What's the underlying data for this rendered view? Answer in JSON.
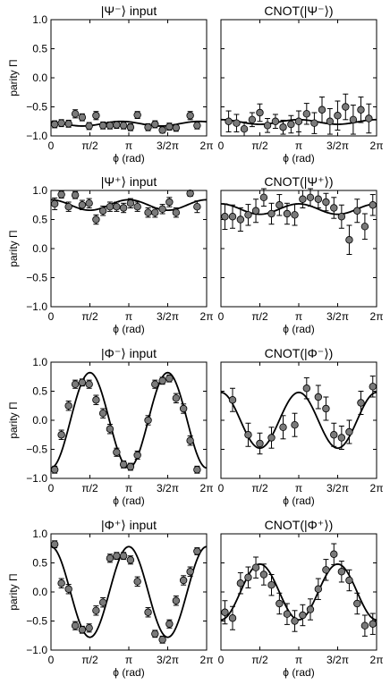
{
  "y_ticks": [
    "1.0",
    "0.5",
    "0.0",
    "−0.5",
    "−1.0"
  ],
  "x_ticks": [
    "0",
    "π/2",
    "π",
    "3/2π",
    "2π"
  ],
  "chart_data": [
    {
      "type": "scatter",
      "title": "|Ψ⁻⟩ input",
      "xlabel": "ϕ (rad)",
      "ylabel": "parity Π",
      "xlim": [
        0,
        6.2832
      ],
      "ylim": [
        -1.0,
        1.0
      ],
      "points": [
        {
          "x": 0.15,
          "y": -0.8,
          "err": 0.06
        },
        {
          "x": 0.42,
          "y": -0.78,
          "err": 0.06
        },
        {
          "x": 0.71,
          "y": -0.79,
          "err": 0.06
        },
        {
          "x": 0.98,
          "y": -0.62,
          "err": 0.07
        },
        {
          "x": 1.26,
          "y": -0.68,
          "err": 0.06
        },
        {
          "x": 1.54,
          "y": -0.83,
          "err": 0.06
        },
        {
          "x": 1.82,
          "y": -0.65,
          "err": 0.07
        },
        {
          "x": 2.1,
          "y": -0.82,
          "err": 0.06
        },
        {
          "x": 2.38,
          "y": -0.82,
          "err": 0.06
        },
        {
          "x": 2.65,
          "y": -0.81,
          "err": 0.06
        },
        {
          "x": 2.93,
          "y": -0.82,
          "err": 0.06
        },
        {
          "x": 3.21,
          "y": -0.85,
          "err": 0.06
        },
        {
          "x": 3.49,
          "y": -0.64,
          "err": 0.06
        },
        {
          "x": 3.92,
          "y": -0.85,
          "err": 0.06
        },
        {
          "x": 4.2,
          "y": -0.8,
          "err": 0.06
        },
        {
          "x": 4.5,
          "y": -0.9,
          "err": 0.05
        },
        {
          "x": 4.78,
          "y": -0.84,
          "err": 0.06
        },
        {
          "x": 5.05,
          "y": -0.86,
          "err": 0.06
        },
        {
          "x": 5.62,
          "y": -0.65,
          "err": 0.07
        },
        {
          "x": 5.9,
          "y": -0.82,
          "err": 0.06
        }
      ],
      "fit": {
        "offset": -0.79,
        "amplitude": 0.04,
        "phase": 0.6
      }
    },
    {
      "type": "scatter",
      "title": "CNOT(|Ψ⁻⟩)",
      "xlabel": "ϕ (rad)",
      "ylabel": "",
      "xlim": [
        0,
        6.2832
      ],
      "ylim": [
        -1.0,
        1.0
      ],
      "points": [
        {
          "x": 0.31,
          "y": -0.75,
          "err": 0.18
        },
        {
          "x": 0.63,
          "y": -0.78,
          "err": 0.15
        },
        {
          "x": 0.94,
          "y": -0.88,
          "err": 0.12
        },
        {
          "x": 1.26,
          "y": -0.72,
          "err": 0.12
        },
        {
          "x": 1.57,
          "y": -0.6,
          "err": 0.15
        },
        {
          "x": 1.88,
          "y": -0.82,
          "err": 0.12
        },
        {
          "x": 2.2,
          "y": -0.75,
          "err": 0.12
        },
        {
          "x": 2.51,
          "y": -0.85,
          "err": 0.12
        },
        {
          "x": 2.83,
          "y": -0.8,
          "err": 0.15
        },
        {
          "x": 3.14,
          "y": -0.75,
          "err": 0.18
        },
        {
          "x": 3.46,
          "y": -0.62,
          "err": 0.18
        },
        {
          "x": 3.77,
          "y": -0.78,
          "err": 0.18
        },
        {
          "x": 4.08,
          "y": -0.55,
          "err": 0.22
        },
        {
          "x": 4.4,
          "y": -0.75,
          "err": 0.22
        },
        {
          "x": 4.71,
          "y": -0.65,
          "err": 0.25
        },
        {
          "x": 5.03,
          "y": -0.5,
          "err": 0.22
        },
        {
          "x": 5.34,
          "y": -0.72,
          "err": 0.25
        },
        {
          "x": 5.65,
          "y": -0.55,
          "err": 0.22
        },
        {
          "x": 5.97,
          "y": -0.7,
          "err": 0.25
        }
      ],
      "fit": {
        "offset": -0.76,
        "amplitude": 0.04,
        "phase": 0.0
      }
    },
    {
      "type": "scatter",
      "title": "|Ψ⁺⟩ input",
      "xlabel": "ϕ (rad)",
      "ylabel": "parity Π",
      "xlim": [
        0,
        6.2832
      ],
      "ylim": [
        -1.0,
        1.0
      ],
      "points": [
        {
          "x": 0.15,
          "y": 0.77,
          "err": 0.1
        },
        {
          "x": 0.42,
          "y": 0.93,
          "err": 0.06
        },
        {
          "x": 0.71,
          "y": 0.72,
          "err": 0.08
        },
        {
          "x": 0.98,
          "y": 0.92,
          "err": 0.06
        },
        {
          "x": 1.26,
          "y": 0.75,
          "err": 0.08
        },
        {
          "x": 1.54,
          "y": 0.78,
          "err": 0.08
        },
        {
          "x": 1.82,
          "y": 0.5,
          "err": 0.08
        },
        {
          "x": 2.1,
          "y": 0.65,
          "err": 0.08
        },
        {
          "x": 2.38,
          "y": 0.72,
          "err": 0.08
        },
        {
          "x": 2.65,
          "y": 0.72,
          "err": 0.08
        },
        {
          "x": 2.93,
          "y": 0.7,
          "err": 0.08
        },
        {
          "x": 3.21,
          "y": 0.78,
          "err": 0.08
        },
        {
          "x": 3.49,
          "y": 0.72,
          "err": 0.08
        },
        {
          "x": 3.92,
          "y": 0.62,
          "err": 0.08
        },
        {
          "x": 4.2,
          "y": 0.62,
          "err": 0.08
        },
        {
          "x": 4.5,
          "y": 0.68,
          "err": 0.08
        },
        {
          "x": 4.78,
          "y": 0.8,
          "err": 0.08
        },
        {
          "x": 5.05,
          "y": 0.62,
          "err": 0.08
        },
        {
          "x": 5.62,
          "y": 0.95,
          "err": 0.05
        },
        {
          "x": 5.9,
          "y": 0.72,
          "err": 0.1
        }
      ],
      "fit": {
        "offset": 0.75,
        "amplitude": 0.09,
        "phase": 0.0
      }
    },
    {
      "type": "scatter",
      "title": "CNOT(|Ψ⁺⟩)",
      "xlabel": "ϕ (rad)",
      "ylabel": "",
      "xlim": [
        0,
        6.2832
      ],
      "ylim": [
        -1.0,
        1.0
      ],
      "points": [
        {
          "x": 0.16,
          "y": 0.55,
          "err": 0.22
        },
        {
          "x": 0.47,
          "y": 0.55,
          "err": 0.2
        },
        {
          "x": 0.79,
          "y": 0.5,
          "err": 0.2
        },
        {
          "x": 1.1,
          "y": 0.58,
          "err": 0.18
        },
        {
          "x": 1.41,
          "y": 0.65,
          "err": 0.2
        },
        {
          "x": 1.73,
          "y": 0.88,
          "err": 0.15
        },
        {
          "x": 2.04,
          "y": 0.6,
          "err": 0.18
        },
        {
          "x": 2.36,
          "y": 0.75,
          "err": 0.18
        },
        {
          "x": 2.67,
          "y": 0.6,
          "err": 0.18
        },
        {
          "x": 2.98,
          "y": 0.58,
          "err": 0.18
        },
        {
          "x": 3.3,
          "y": 0.85,
          "err": 0.15
        },
        {
          "x": 3.61,
          "y": 0.88,
          "err": 0.15
        },
        {
          "x": 3.93,
          "y": 0.85,
          "err": 0.15
        },
        {
          "x": 4.24,
          "y": 0.8,
          "err": 0.15
        },
        {
          "x": 4.56,
          "y": 0.7,
          "err": 0.18
        },
        {
          "x": 4.87,
          "y": 0.55,
          "err": 0.2
        },
        {
          "x": 5.18,
          "y": 0.15,
          "err": 0.25
        },
        {
          "x": 5.5,
          "y": 0.65,
          "err": 0.2
        },
        {
          "x": 5.81,
          "y": 0.38,
          "err": 0.22
        },
        {
          "x": 6.13,
          "y": 0.75,
          "err": 0.18
        }
      ],
      "fit": {
        "offset": 0.68,
        "amplitude": 0.09,
        "phase": 0.0
      }
    },
    {
      "type": "scatter",
      "title": "|Φ⁻⟩ input",
      "xlabel": "ϕ (rad)",
      "ylabel": "parity Π",
      "xlim": [
        0,
        6.2832
      ],
      "ylim": [
        -1.0,
        1.0
      ],
      "points": [
        {
          "x": 0.15,
          "y": -0.85,
          "err": 0.06
        },
        {
          "x": 0.42,
          "y": -0.25,
          "err": 0.08
        },
        {
          "x": 0.71,
          "y": 0.25,
          "err": 0.08
        },
        {
          "x": 0.98,
          "y": 0.62,
          "err": 0.07
        },
        {
          "x": 1.26,
          "y": 0.65,
          "err": 0.06
        },
        {
          "x": 1.54,
          "y": 0.62,
          "err": 0.07
        },
        {
          "x": 1.82,
          "y": 0.35,
          "err": 0.08
        },
        {
          "x": 2.1,
          "y": 0.12,
          "err": 0.08
        },
        {
          "x": 2.38,
          "y": -0.15,
          "err": 0.08
        },
        {
          "x": 2.65,
          "y": -0.55,
          "err": 0.07
        },
        {
          "x": 2.93,
          "y": -0.76,
          "err": 0.06
        },
        {
          "x": 3.21,
          "y": -0.8,
          "err": 0.06
        },
        {
          "x": 3.49,
          "y": -0.6,
          "err": 0.07
        },
        {
          "x": 3.92,
          "y": 0.0,
          "err": 0.08
        },
        {
          "x": 4.2,
          "y": 0.62,
          "err": 0.07
        },
        {
          "x": 4.5,
          "y": 0.68,
          "err": 0.06
        },
        {
          "x": 4.78,
          "y": 0.72,
          "err": 0.06
        },
        {
          "x": 5.05,
          "y": 0.38,
          "err": 0.08
        },
        {
          "x": 5.35,
          "y": 0.2,
          "err": 0.08
        },
        {
          "x": 5.62,
          "y": -0.35,
          "err": 0.08
        },
        {
          "x": 5.9,
          "y": -0.85,
          "err": 0.06
        }
      ],
      "fit": {
        "offset": 0.0,
        "amplitude": -0.82,
        "phase": 0.0
      }
    },
    {
      "type": "scatter",
      "title": "CNOT(|Φ⁻⟩)",
      "xlabel": "ϕ (rad)",
      "ylabel": "",
      "xlim": [
        0,
        6.2832
      ],
      "ylim": [
        -1.0,
        1.0
      ],
      "points": [
        {
          "x": 0.47,
          "y": 0.35,
          "err": 0.2
        },
        {
          "x": 1.1,
          "y": -0.25,
          "err": 0.2
        },
        {
          "x": 1.57,
          "y": -0.4,
          "err": 0.18
        },
        {
          "x": 2.04,
          "y": -0.3,
          "err": 0.18
        },
        {
          "x": 2.51,
          "y": -0.12,
          "err": 0.2
        },
        {
          "x": 2.98,
          "y": -0.08,
          "err": 0.2
        },
        {
          "x": 3.46,
          "y": 0.55,
          "err": 0.18
        },
        {
          "x": 3.93,
          "y": 0.4,
          "err": 0.2
        },
        {
          "x": 4.24,
          "y": 0.2,
          "err": 0.2
        },
        {
          "x": 4.56,
          "y": -0.25,
          "err": 0.2
        },
        {
          "x": 4.87,
          "y": -0.3,
          "err": 0.2
        },
        {
          "x": 5.18,
          "y": -0.2,
          "err": 0.2
        },
        {
          "x": 5.65,
          "y": 0.3,
          "err": 0.2
        },
        {
          "x": 6.13,
          "y": 0.58,
          "err": 0.18
        }
      ],
      "fit": {
        "offset": 0.0,
        "amplitude": 0.48,
        "phase": 0.0
      }
    },
    {
      "type": "scatter",
      "title": "|Φ⁺⟩ input",
      "xlabel": "ϕ (rad)",
      "ylabel": "parity Π",
      "xlim": [
        0,
        6.2832
      ],
      "ylim": [
        -1.0,
        1.0
      ],
      "points": [
        {
          "x": 0.15,
          "y": 0.82,
          "err": 0.06
        },
        {
          "x": 0.42,
          "y": 0.15,
          "err": 0.08
        },
        {
          "x": 0.71,
          "y": 0.05,
          "err": 0.08
        },
        {
          "x": 0.98,
          "y": -0.58,
          "err": 0.07
        },
        {
          "x": 1.26,
          "y": -0.65,
          "err": 0.06
        },
        {
          "x": 1.54,
          "y": -0.62,
          "err": 0.07
        },
        {
          "x": 1.82,
          "y": -0.32,
          "err": 0.08
        },
        {
          "x": 2.1,
          "y": -0.18,
          "err": 0.08
        },
        {
          "x": 2.38,
          "y": 0.58,
          "err": 0.07
        },
        {
          "x": 2.65,
          "y": 0.62,
          "err": 0.06
        },
        {
          "x": 2.93,
          "y": 0.62,
          "err": 0.06
        },
        {
          "x": 3.21,
          "y": 0.55,
          "err": 0.07
        },
        {
          "x": 3.49,
          "y": 0.18,
          "err": 0.08
        },
        {
          "x": 3.92,
          "y": -0.35,
          "err": 0.08
        },
        {
          "x": 4.2,
          "y": -0.72,
          "err": 0.06
        },
        {
          "x": 4.5,
          "y": -0.82,
          "err": 0.06
        },
        {
          "x": 4.78,
          "y": -0.55,
          "err": 0.07
        },
        {
          "x": 5.05,
          "y": -0.15,
          "err": 0.08
        },
        {
          "x": 5.35,
          "y": 0.2,
          "err": 0.08
        },
        {
          "x": 5.62,
          "y": 0.35,
          "err": 0.08
        },
        {
          "x": 5.9,
          "y": 0.7,
          "err": 0.06
        }
      ],
      "fit": {
        "offset": 0.0,
        "amplitude": 0.78,
        "phase": 0.0
      }
    },
    {
      "type": "scatter",
      "title": "CNOT(|Φ⁺⟩)",
      "xlabel": "ϕ (rad)",
      "ylabel": "",
      "xlim": [
        0,
        6.2832
      ],
      "ylim": [
        -1.0,
        1.0
      ],
      "points": [
        {
          "x": 0.16,
          "y": -0.35,
          "err": 0.2
        },
        {
          "x": 0.47,
          "y": -0.45,
          "err": 0.2
        },
        {
          "x": 0.79,
          "y": 0.15,
          "err": 0.18
        },
        {
          "x": 1.1,
          "y": 0.25,
          "err": 0.18
        },
        {
          "x": 1.41,
          "y": 0.42,
          "err": 0.18
        },
        {
          "x": 1.73,
          "y": 0.3,
          "err": 0.18
        },
        {
          "x": 2.04,
          "y": 0.12,
          "err": 0.18
        },
        {
          "x": 2.36,
          "y": -0.2,
          "err": 0.18
        },
        {
          "x": 2.67,
          "y": -0.38,
          "err": 0.18
        },
        {
          "x": 2.98,
          "y": -0.5,
          "err": 0.18
        },
        {
          "x": 3.3,
          "y": -0.4,
          "err": 0.18
        },
        {
          "x": 3.61,
          "y": -0.3,
          "err": 0.18
        },
        {
          "x": 3.93,
          "y": 0.05,
          "err": 0.18
        },
        {
          "x": 4.24,
          "y": 0.38,
          "err": 0.18
        },
        {
          "x": 4.56,
          "y": 0.65,
          "err": 0.18
        },
        {
          "x": 4.87,
          "y": 0.35,
          "err": 0.18
        },
        {
          "x": 5.18,
          "y": 0.2,
          "err": 0.18
        },
        {
          "x": 5.5,
          "y": -0.2,
          "err": 0.18
        },
        {
          "x": 5.81,
          "y": -0.58,
          "err": 0.18
        },
        {
          "x": 6.13,
          "y": -0.55,
          "err": 0.18
        }
      ],
      "fit": {
        "offset": 0.0,
        "amplitude": -0.48,
        "phase": 0.0
      }
    }
  ]
}
